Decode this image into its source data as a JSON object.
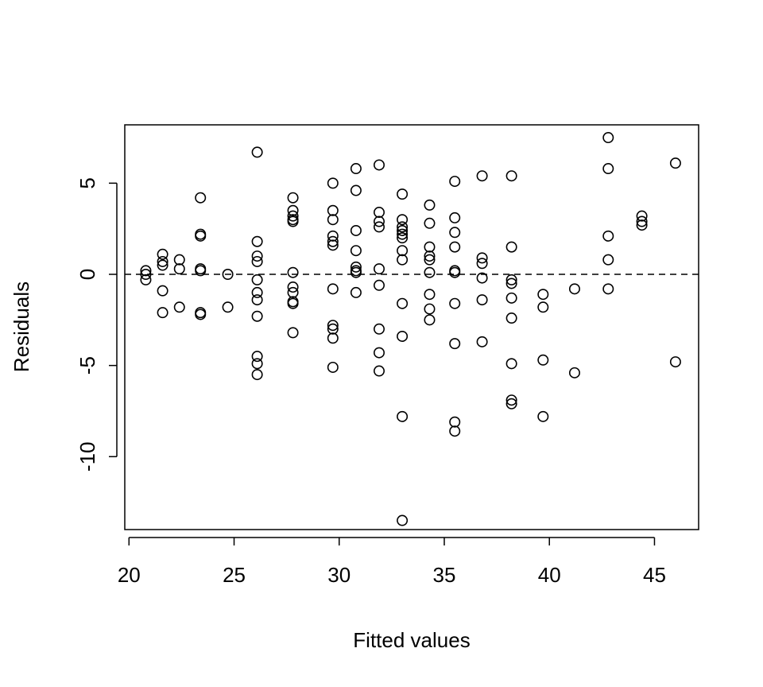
{
  "chart_data": {
    "type": "scatter",
    "title": "",
    "xlabel": "Fitted values",
    "ylabel": "Residuals",
    "xlim": [
      19.8,
      47.1
    ],
    "ylim": [
      -14.0,
      8.2
    ],
    "xticks": [
      "20",
      "25",
      "30",
      "35",
      "40",
      "45"
    ],
    "yticks": [
      "-10",
      "-5",
      "0",
      "5"
    ],
    "reference_line": {
      "y": 0,
      "style": "dashed"
    },
    "grid": false,
    "legend": "none",
    "point_style": "open-circle",
    "colors": {
      "points": "#000000",
      "axes": "#000000"
    },
    "points": [
      [
        20.8,
        0.2
      ],
      [
        20.8,
        0.0
      ],
      [
        20.8,
        -0.3
      ],
      [
        21.6,
        1.1
      ],
      [
        21.6,
        0.7
      ],
      [
        21.6,
        0.5
      ],
      [
        21.6,
        -0.9
      ],
      [
        21.6,
        -2.1
      ],
      [
        22.4,
        0.8
      ],
      [
        22.4,
        0.3
      ],
      [
        22.4,
        -1.8
      ],
      [
        23.4,
        4.2
      ],
      [
        23.4,
        2.2
      ],
      [
        23.4,
        2.1
      ],
      [
        23.4,
        0.3
      ],
      [
        23.4,
        0.2
      ],
      [
        23.4,
        -2.1
      ],
      [
        23.4,
        -2.2
      ],
      [
        24.7,
        0.0
      ],
      [
        24.7,
        -1.8
      ],
      [
        26.1,
        6.7
      ],
      [
        26.1,
        1.8
      ],
      [
        26.1,
        1.0
      ],
      [
        26.1,
        0.7
      ],
      [
        26.1,
        -0.3
      ],
      [
        26.1,
        -1.0
      ],
      [
        26.1,
        -1.4
      ],
      [
        26.1,
        -2.3
      ],
      [
        26.1,
        -4.5
      ],
      [
        26.1,
        -4.9
      ],
      [
        26.1,
        -5.5
      ],
      [
        27.8,
        4.2
      ],
      [
        27.8,
        3.5
      ],
      [
        27.8,
        3.2
      ],
      [
        27.8,
        3.0
      ],
      [
        27.8,
        2.9
      ],
      [
        27.8,
        0.1
      ],
      [
        27.8,
        -0.7
      ],
      [
        27.8,
        -1.0
      ],
      [
        27.8,
        -1.5
      ],
      [
        27.8,
        -1.6
      ],
      [
        27.8,
        -3.2
      ],
      [
        29.7,
        5.0
      ],
      [
        29.7,
        3.5
      ],
      [
        29.7,
        3.0
      ],
      [
        29.7,
        2.1
      ],
      [
        29.7,
        1.8
      ],
      [
        29.7,
        1.6
      ],
      [
        29.7,
        -0.8
      ],
      [
        29.7,
        -2.8
      ],
      [
        29.7,
        -3.0
      ],
      [
        29.7,
        -3.5
      ],
      [
        29.7,
        -5.1
      ],
      [
        30.8,
        5.8
      ],
      [
        30.8,
        4.6
      ],
      [
        30.8,
        2.4
      ],
      [
        30.8,
        1.3
      ],
      [
        30.8,
        0.4
      ],
      [
        30.8,
        0.2
      ],
      [
        30.8,
        0.1
      ],
      [
        30.8,
        -1.0
      ],
      [
        31.9,
        6.0
      ],
      [
        31.9,
        3.4
      ],
      [
        31.9,
        2.9
      ],
      [
        31.9,
        2.6
      ],
      [
        31.9,
        0.3
      ],
      [
        31.9,
        -0.6
      ],
      [
        31.9,
        -3.0
      ],
      [
        31.9,
        -4.3
      ],
      [
        31.9,
        -5.3
      ],
      [
        33.0,
        4.4
      ],
      [
        33.0,
        3.0
      ],
      [
        33.0,
        2.6
      ],
      [
        33.0,
        2.4
      ],
      [
        33.0,
        2.2
      ],
      [
        33.0,
        2.0
      ],
      [
        33.0,
        1.3
      ],
      [
        33.0,
        0.8
      ],
      [
        33.0,
        -1.6
      ],
      [
        33.0,
        -3.4
      ],
      [
        33.0,
        -7.8
      ],
      [
        33.0,
        -13.5
      ],
      [
        34.3,
        3.8
      ],
      [
        34.3,
        2.8
      ],
      [
        34.3,
        1.5
      ],
      [
        34.3,
        1.0
      ],
      [
        34.3,
        0.8
      ],
      [
        34.3,
        0.1
      ],
      [
        34.3,
        -1.1
      ],
      [
        34.3,
        -1.9
      ],
      [
        34.3,
        -2.5
      ],
      [
        35.5,
        5.1
      ],
      [
        35.5,
        3.1
      ],
      [
        35.5,
        2.3
      ],
      [
        35.5,
        1.5
      ],
      [
        35.5,
        0.2
      ],
      [
        35.5,
        0.1
      ],
      [
        35.5,
        -1.6
      ],
      [
        35.5,
        -3.8
      ],
      [
        35.5,
        -8.1
      ],
      [
        35.5,
        -8.6
      ],
      [
        36.8,
        5.4
      ],
      [
        36.8,
        0.9
      ],
      [
        36.8,
        0.6
      ],
      [
        36.8,
        -0.2
      ],
      [
        36.8,
        -1.4
      ],
      [
        36.8,
        -3.7
      ],
      [
        38.2,
        5.4
      ],
      [
        38.2,
        1.5
      ],
      [
        38.2,
        -0.3
      ],
      [
        38.2,
        -0.5
      ],
      [
        38.2,
        -1.3
      ],
      [
        38.2,
        -2.4
      ],
      [
        38.2,
        -4.9
      ],
      [
        38.2,
        -6.9
      ],
      [
        38.2,
        -7.1
      ],
      [
        39.7,
        -1.1
      ],
      [
        39.7,
        -1.8
      ],
      [
        39.7,
        -4.7
      ],
      [
        39.7,
        -7.8
      ],
      [
        41.2,
        -0.8
      ],
      [
        41.2,
        -5.4
      ],
      [
        42.8,
        7.5
      ],
      [
        42.8,
        5.8
      ],
      [
        42.8,
        2.1
      ],
      [
        42.8,
        0.8
      ],
      [
        42.8,
        -0.8
      ],
      [
        44.4,
        3.2
      ],
      [
        44.4,
        2.9
      ],
      [
        44.4,
        2.7
      ],
      [
        46.0,
        6.1
      ],
      [
        46.0,
        -4.8
      ]
    ]
  }
}
